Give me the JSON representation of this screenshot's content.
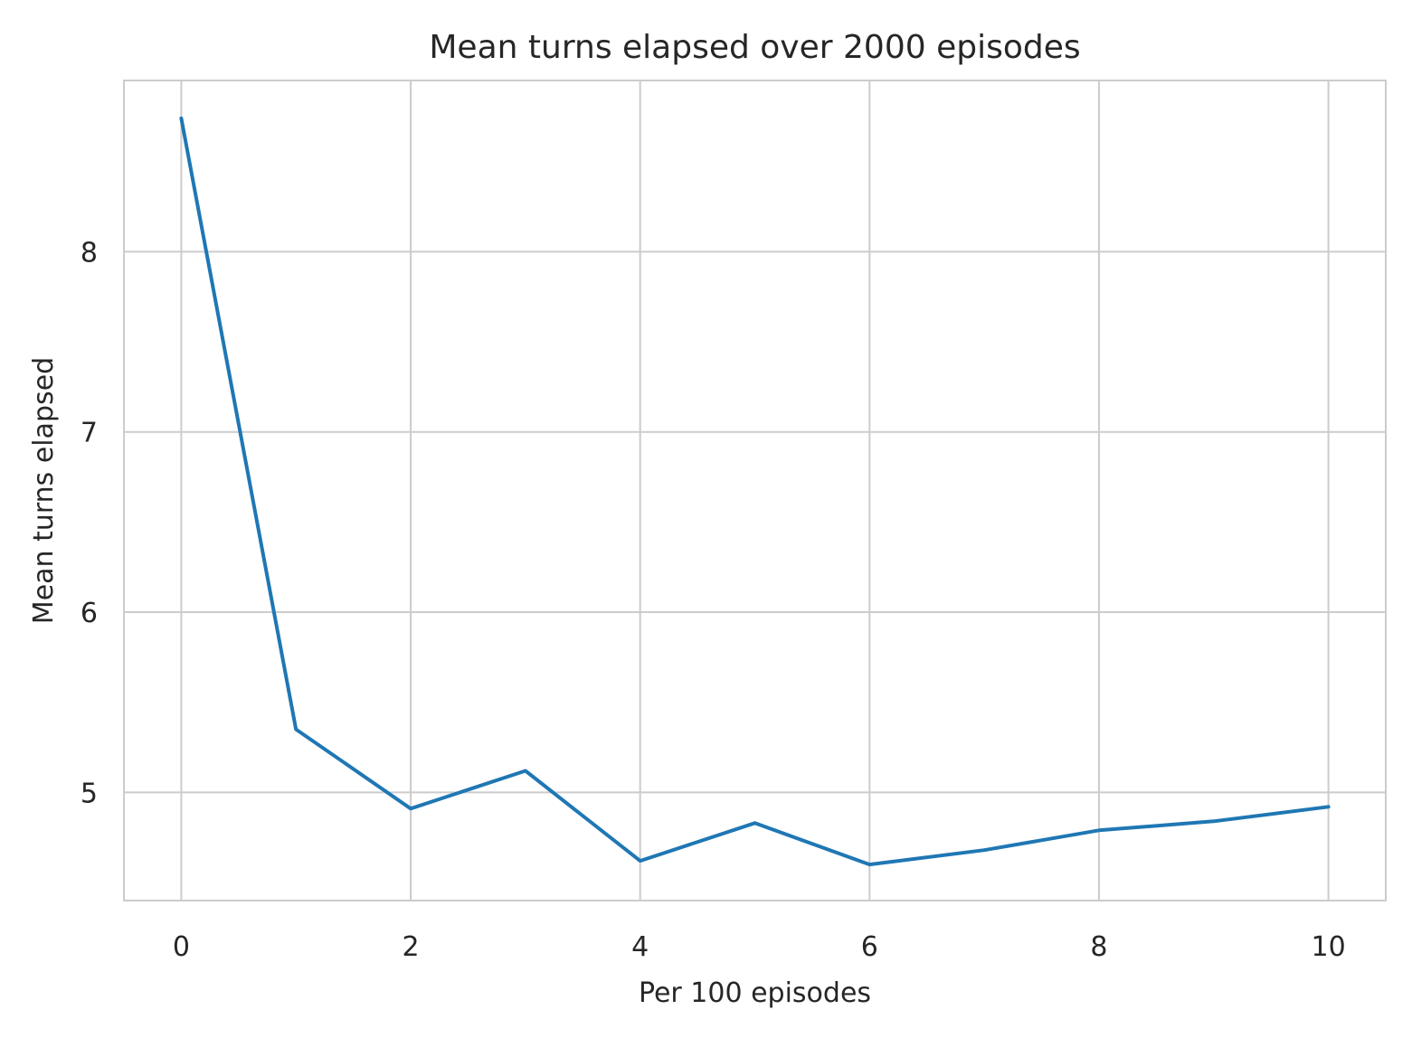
{
  "chart_data": {
    "type": "line",
    "title": "Mean turns elapsed over 2000 episodes",
    "xlabel": "Per 100 episodes",
    "ylabel": "Mean turns elapsed",
    "x": [
      0,
      1,
      2,
      3,
      4,
      5,
      6,
      7,
      8,
      9,
      10
    ],
    "series": [
      {
        "values": [
          8.74,
          5.35,
          4.91,
          5.12,
          4.62,
          4.83,
          4.6,
          4.68,
          4.79,
          4.84,
          4.92
        ],
        "color": "#1f77b4"
      }
    ],
    "xlim": [
      -0.5,
      10.5
    ],
    "ylim": [
      4.4,
      8.95
    ],
    "xticks": [
      0,
      2,
      4,
      6,
      8,
      10
    ],
    "yticks": [
      5,
      6,
      7,
      8
    ],
    "grid": true,
    "legend": "none"
  }
}
